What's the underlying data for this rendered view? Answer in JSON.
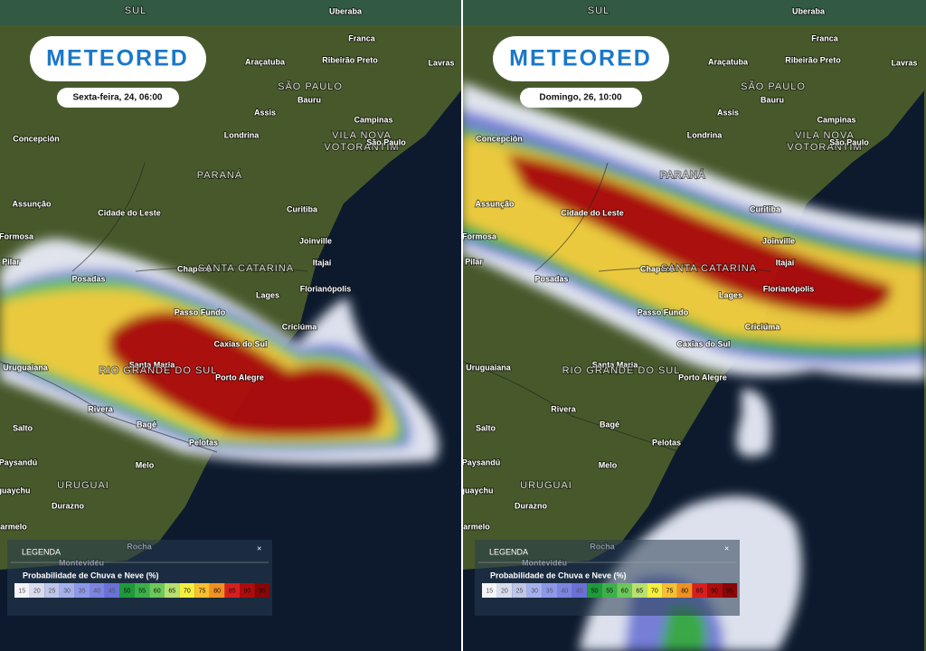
{
  "brand": "METEORED",
  "panels": [
    {
      "date": "Sexta-feira, 24, 06:00"
    },
    {
      "date": "Domingo, 26, 10:00"
    }
  ],
  "places": [
    "SUL",
    "Uberaba",
    "Franca",
    "Araçatuba",
    "Ribeirão Preto",
    "Lavras",
    "SÃO PAULO",
    "Bauru",
    "Assis",
    "Campinas",
    "Londrina",
    "VILA NOVA",
    "VOTORANTIM",
    "São Paulo",
    "PARANÁ",
    "Concepción",
    "Assunção",
    "Cidade do Leste",
    "Curitiba",
    "Joinville",
    "Formosa",
    "Itajaí",
    "Pilar",
    "Chapecó",
    "SANTA CATARINA",
    "Posadas",
    "Lages",
    "Florianópolis",
    "Passo Fundo",
    "Criciúma",
    "Caxias do Sul",
    "Uruguaiana",
    "Santa Maria",
    "RIO GRANDE DO SUL",
    "Porto Alegre",
    "Rivera",
    "Bagé",
    "Salto",
    "Pelotas",
    "Paysandú",
    "Melo",
    "URUGUAI",
    "guaychu",
    "Durazno",
    "armelo",
    "Rocha",
    "Montevidéu"
  ],
  "legend": {
    "title": "LEGENDA",
    "close": "×",
    "heading": "Probabilidade de Chuva e Neve (%)",
    "values": [
      15,
      20,
      25,
      30,
      35,
      40,
      45,
      50,
      55,
      60,
      65,
      70,
      75,
      80,
      85,
      90,
      95
    ]
  }
}
